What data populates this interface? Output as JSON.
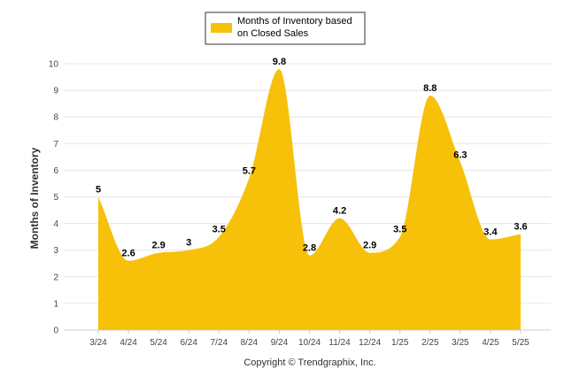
{
  "chart_data": {
    "type": "area",
    "categories": [
      "3/24",
      "4/24",
      "5/24",
      "6/24",
      "7/24",
      "8/24",
      "9/24",
      "10/24",
      "11/24",
      "12/24",
      "1/25",
      "2/25",
      "3/25",
      "4/25",
      "5/25"
    ],
    "series": [
      {
        "name": "Months of Inventory based on Closed Sales",
        "values": [
          5,
          2.6,
          2.9,
          3,
          3.5,
          5.7,
          9.8,
          2.8,
          4.2,
          2.9,
          3.5,
          8.8,
          6.3,
          3.4,
          3.6
        ],
        "color": "#f7c10a"
      }
    ],
    "data_labels": [
      "5",
      "2.6",
      "2.9",
      "3",
      "3.5",
      "5.7",
      "9.8",
      "2.8",
      "4.2",
      "2.9",
      "3.5",
      "8.8",
      "6.3",
      "3.4",
      "3.6"
    ],
    "y_ticks": [
      "0",
      "1",
      "2",
      "3",
      "4",
      "5",
      "6",
      "7",
      "8",
      "9",
      "10"
    ],
    "ylim": [
      0,
      10
    ],
    "ylabel": "Months of Inventory",
    "xlabel": "",
    "legend": {
      "line1": "Months of Inventory based",
      "line2": "on Closed Sales",
      "placement": "top-center"
    },
    "grid": true
  },
  "credit": "Copyright © Trendgraphix, Inc."
}
